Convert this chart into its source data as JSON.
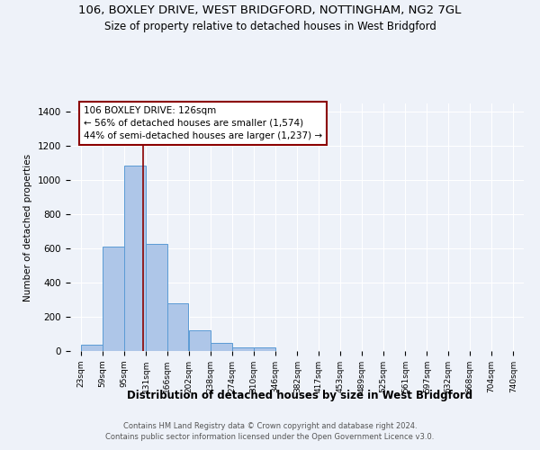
{
  "title": "106, BOXLEY DRIVE, WEST BRIDGFORD, NOTTINGHAM, NG2 7GL",
  "subtitle": "Size of property relative to detached houses in West Bridgford",
  "xlabel": "Distribution of detached houses by size in West Bridgford",
  "ylabel": "Number of detached properties",
  "bar_color": "#aec6e8",
  "bar_edge_color": "#5b9bd5",
  "bins": [
    23,
    59,
    95,
    131,
    166,
    202,
    238,
    274,
    310,
    346,
    382,
    417,
    453,
    489,
    525,
    561,
    597,
    632,
    668,
    704,
    740
  ],
  "bin_labels": [
    "23sqm",
    "59sqm",
    "95sqm",
    "131sqm",
    "166sqm",
    "202sqm",
    "238sqm",
    "274sqm",
    "310sqm",
    "346sqm",
    "382sqm",
    "417sqm",
    "453sqm",
    "489sqm",
    "525sqm",
    "561sqm",
    "597sqm",
    "632sqm",
    "668sqm",
    "704sqm",
    "740sqm"
  ],
  "counts": [
    35,
    610,
    1085,
    625,
    280,
    120,
    45,
    20,
    20,
    0,
    0,
    0,
    0,
    0,
    0,
    0,
    0,
    0,
    0,
    0
  ],
  "property_size": 126,
  "ylim": [
    0,
    1450
  ],
  "yticks": [
    0,
    200,
    400,
    600,
    800,
    1000,
    1200,
    1400
  ],
  "vline_color": "#8b0000",
  "annotation_text": "106 BOXLEY DRIVE: 126sqm\n← 56% of detached houses are smaller (1,574)\n44% of semi-detached houses are larger (1,237) →",
  "annotation_box_color": "#ffffff",
  "annotation_box_edge": "#8b0000",
  "footer1": "Contains HM Land Registry data © Crown copyright and database right 2024.",
  "footer2": "Contains public sector information licensed under the Open Government Licence v3.0.",
  "background_color": "#eef2f9",
  "title_fontsize": 9.5,
  "subtitle_fontsize": 8.5
}
